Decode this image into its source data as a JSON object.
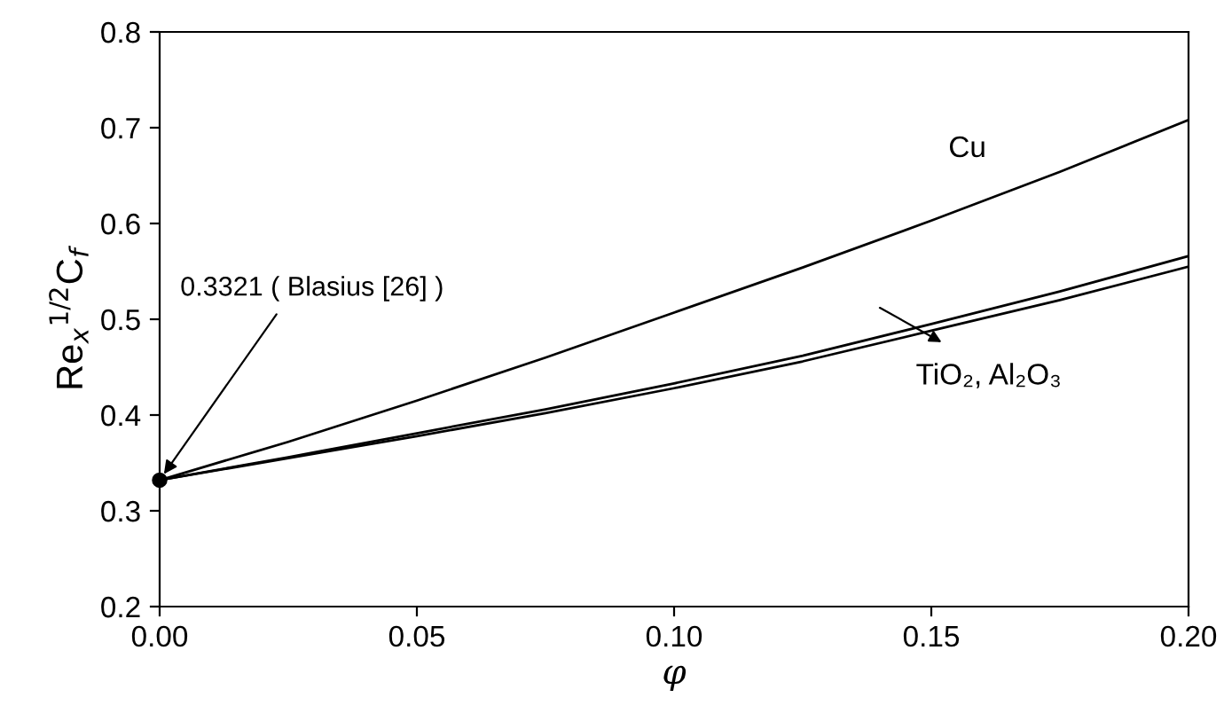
{
  "chart_data": {
    "type": "line",
    "xlabel": "φ",
    "ylabel": "Re$_{x}$$^{1/2}$C$_{f}$",
    "x": [
      0,
      0.025,
      0.05,
      0.075,
      0.1,
      0.125,
      0.15,
      0.175,
      0.2
    ],
    "series": [
      {
        "color": "#000000",
        "values": [
          0.332,
          0.372,
          0.415,
          0.46,
          0.507,
          0.554,
          0.603,
          0.654,
          0.708
        ]
      },
      {
        "color": "#000000",
        "values": [
          0.332,
          0.356,
          0.381,
          0.406,
          0.433,
          0.462,
          0.495,
          0.529,
          0.566
        ]
      },
      {
        "color": "#000000",
        "values": [
          0.332,
          0.355,
          0.378,
          0.402,
          0.428,
          0.456,
          0.488,
          0.52,
          0.555
        ]
      },
      {
        "type": "scatter",
        "color": "#000000",
        "x": [
          0
        ],
        "values": [
          0.332
        ],
        "marker": "circle"
      }
    ],
    "annotations": [
      {
        "text": "0.3321 ( Blasius [26] )",
        "x": 0,
        "y": 0.332
      },
      {
        "text": "Cu",
        "x": 0.16,
        "y": 0.623
      },
      {
        "text": "TiO₂, Al₂O₃",
        "x": 0.148,
        "y": 0.49
      }
    ],
    "xlim": [
      0,
      0.2
    ],
    "ylim": [
      0.2,
      0.8
    ],
    "xticks": [
      {
        "value": 0,
        "label": "0.00"
      },
      0.05,
      {
        "value": 0.1,
        "label": "0.10"
      },
      0.15,
      {
        "value": 0.2,
        "label": "0.20"
      }
    ],
    "yticks": [
      0.2,
      0.3,
      0.4,
      0.5,
      0.6,
      0.7,
      0.8
    ],
    "grid": false,
    "marker": "none",
    "line_style": "solid"
  }
}
